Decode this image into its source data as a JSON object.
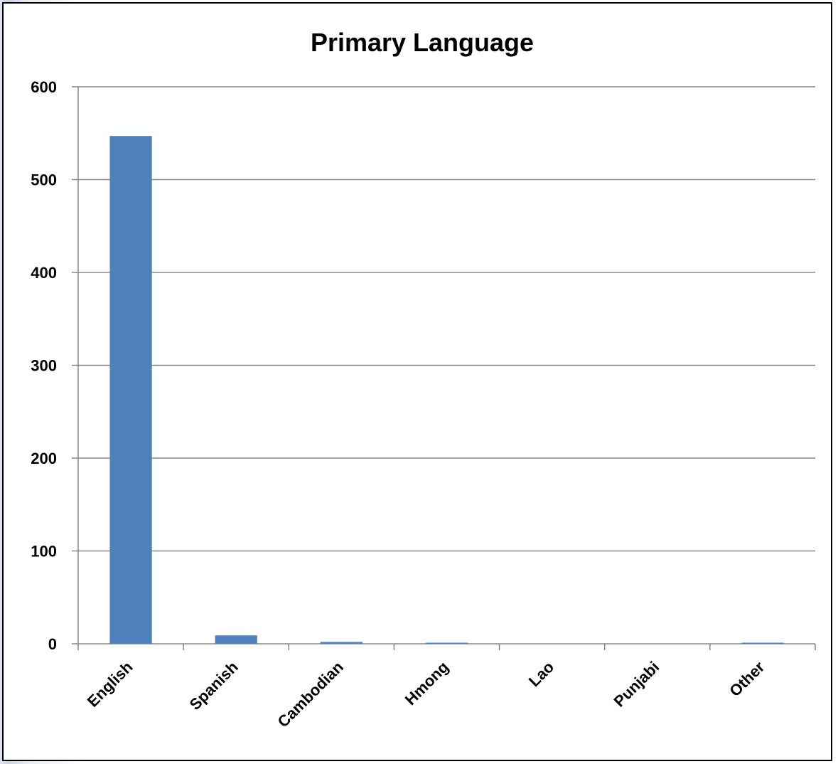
{
  "chart_data": {
    "type": "bar",
    "title": "Primary Language",
    "xlabel": "",
    "ylabel": "",
    "categories": [
      "English",
      "Spanish",
      "Cambodian",
      "Hmong",
      "Lao",
      "Punjabi",
      "Other"
    ],
    "values": [
      547,
      9,
      2,
      1,
      0,
      0,
      1
    ],
    "ylim": [
      0,
      600
    ],
    "yticks": [
      0,
      100,
      200,
      300,
      400,
      500,
      600
    ],
    "grid": true,
    "legend": "none",
    "bar_color": "#4f81bd"
  }
}
